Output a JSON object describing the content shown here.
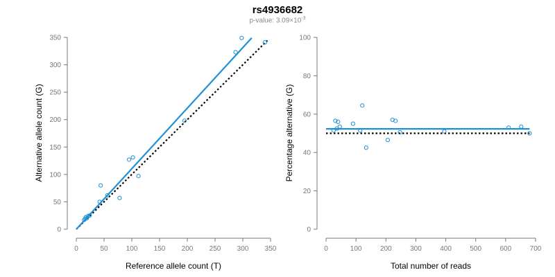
{
  "title": "rs4936682",
  "subtitle": {
    "prefix": "p-value: 3.09×10",
    "exponent": "-3"
  },
  "colors": {
    "points": "#1f8fd6",
    "fit_line": "#1f8fd6",
    "reference_line": "#000000",
    "axis": "#777777"
  },
  "chart_data": [
    {
      "type": "scatter",
      "xlabel": "Reference allele count (T)",
      "ylabel": "Alternative allele count (G)",
      "xlim": [
        0,
        350
      ],
      "ylim": [
        0,
        350
      ],
      "xticks": [
        0,
        50,
        100,
        150,
        200,
        250,
        300,
        350
      ],
      "yticks": [
        0,
        50,
        100,
        150,
        200,
        250,
        300,
        350
      ],
      "points": [
        [
          14,
          17
        ],
        [
          16,
          19
        ],
        [
          17,
          22
        ],
        [
          19,
          20
        ],
        [
          21,
          24
        ],
        [
          24,
          25
        ],
        [
          42,
          50
        ],
        [
          44,
          80
        ],
        [
          56,
          62
        ],
        [
          78,
          57
        ],
        [
          95,
          127
        ],
        [
          102,
          131
        ],
        [
          112,
          97
        ],
        [
          195,
          198
        ],
        [
          287,
          323
        ],
        [
          298,
          349
        ],
        [
          340,
          341
        ]
      ],
      "fit_line": [
        [
          0,
          0
        ],
        [
          316,
          349
        ]
      ],
      "reference_line": [
        [
          0,
          0
        ],
        [
          345,
          345
        ]
      ]
    },
    {
      "type": "scatter",
      "xlabel": "Total number of reads",
      "ylabel": "Percentage alternative (G)",
      "xlim": [
        0,
        700
      ],
      "ylim": [
        0,
        100
      ],
      "xticks": [
        0,
        100,
        200,
        300,
        400,
        500,
        600,
        700
      ],
      "yticks": [
        0,
        20,
        40,
        60,
        80,
        100
      ],
      "points": [
        [
          25,
          51.5
        ],
        [
          31,
          56.5
        ],
        [
          36,
          52.5
        ],
        [
          40,
          56
        ],
        [
          46,
          53.5
        ],
        [
          90,
          55
        ],
        [
          114,
          51.5
        ],
        [
          121,
          64.5
        ],
        [
          134,
          42.5
        ],
        [
          206,
          46.5
        ],
        [
          222,
          57
        ],
        [
          232,
          56.5
        ],
        [
          247,
          50.5
        ],
        [
          395,
          51
        ],
        [
          610,
          53
        ],
        [
          652,
          53.5
        ],
        [
          680,
          50
        ]
      ],
      "fit_line": [
        [
          0,
          52.3
        ],
        [
          680,
          52.3
        ]
      ],
      "reference_line": [
        [
          0,
          50
        ],
        [
          680,
          50
        ]
      ]
    }
  ]
}
